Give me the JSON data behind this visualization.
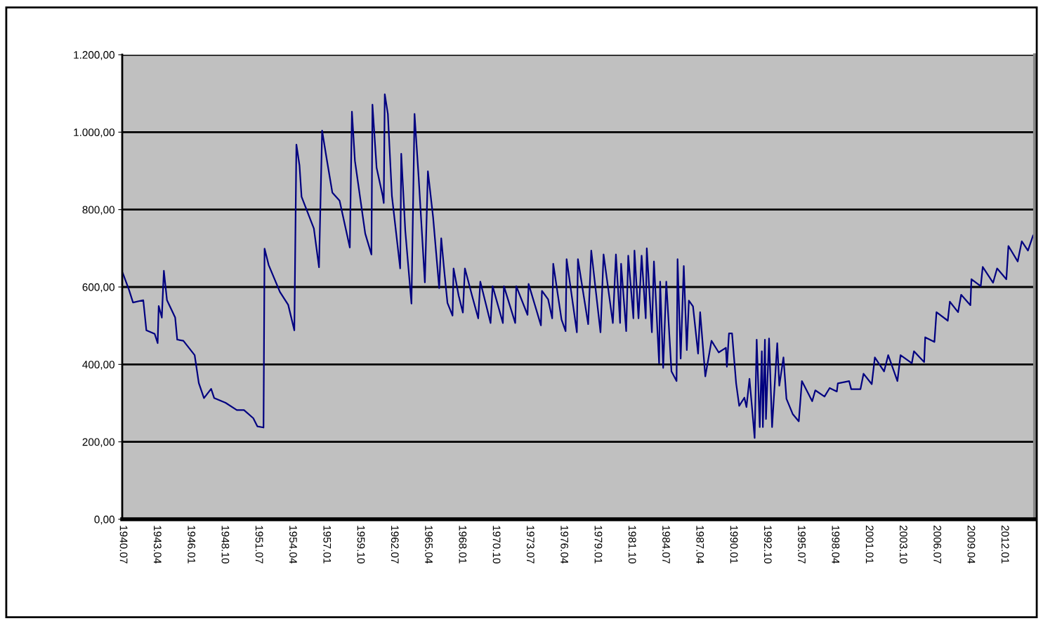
{
  "chart_data": {
    "type": "line",
    "grid": "y",
    "marker": "none",
    "line_style": "solid",
    "xlim": [
      "1940-06-15",
      "2014-06-15"
    ],
    "ylim": [
      0,
      1200
    ],
    "xticks": [
      {
        "value": "1940-07",
        "label": "1940.07"
      },
      {
        "value": "1943-04",
        "label": "1943.04"
      },
      {
        "value": "1946-01",
        "label": "1946.01"
      },
      {
        "value": "1948-10",
        "label": "1948.10"
      },
      {
        "value": "1951-07",
        "label": "1951.07"
      },
      {
        "value": "1954-04",
        "label": "1954.04"
      },
      {
        "value": "1957-01",
        "label": "1957.01"
      },
      {
        "value": "1959-10",
        "label": "1959.10"
      },
      {
        "value": "1962-07",
        "label": "1962.07"
      },
      {
        "value": "1965-04",
        "label": "1965.04"
      },
      {
        "value": "1968-01",
        "label": "1968.01"
      },
      {
        "value": "1970-10",
        "label": "1970.10"
      },
      {
        "value": "1973-07",
        "label": "1973.07"
      },
      {
        "value": "1976-04",
        "label": "1976.04"
      },
      {
        "value": "1979-01",
        "label": "1979.01"
      },
      {
        "value": "1981-10",
        "label": "1981.10"
      },
      {
        "value": "1984-07",
        "label": "1984.07"
      },
      {
        "value": "1987-04",
        "label": "1987.04"
      },
      {
        "value": "1990-01",
        "label": "1990.01"
      },
      {
        "value": "1992-10",
        "label": "1992.10"
      },
      {
        "value": "1995-07",
        "label": "1995.07"
      },
      {
        "value": "1998-04",
        "label": "1998.04"
      },
      {
        "value": "2001-01",
        "label": "2001.01"
      },
      {
        "value": "2003-10",
        "label": "2003.10"
      },
      {
        "value": "2006-07",
        "label": "2006.07"
      },
      {
        "value": "2009-04",
        "label": "2009.04"
      },
      {
        "value": "2012-01",
        "label": "2012.01"
      }
    ],
    "yticks": [
      {
        "value": 0,
        "label": "0,00"
      },
      {
        "value": 200,
        "label": "200,00"
      },
      {
        "value": 400,
        "label": "400,00"
      },
      {
        "value": 600,
        "label": "600,00"
      },
      {
        "value": 800,
        "label": "800,00"
      },
      {
        "value": 1000,
        "label": "1.000,00"
      },
      {
        "value": 1200,
        "label": "1.200,00"
      }
    ],
    "series": [
      {
        "color": "#000080",
        "x": [
          "1940-07",
          "1941-01",
          "1941-05",
          "1942-03",
          "1942-06",
          "1943-02",
          "1943-05",
          "1943-06",
          "1943-09",
          "1943-11",
          "1944-02",
          "1944-10",
          "1944-12",
          "1945-06",
          "1946-05",
          "1946-09",
          "1947-02",
          "1947-09",
          "1947-12",
          "1948-11",
          "1949-10",
          "1950-05",
          "1951-02",
          "1951-06",
          "1951-12",
          "1952-01",
          "1952-05",
          "1953-04",
          "1953-12",
          "1954-06",
          "1954-08",
          "1954-11",
          "1955-01",
          "1956-01",
          "1956-06",
          "1956-09",
          "1957-01",
          "1957-07",
          "1958-02",
          "1958-12",
          "1959-02",
          "1959-05",
          "1960-03",
          "1960-09",
          "1960-10",
          "1961-02",
          "1961-08",
          "1961-09",
          "1961-10",
          "1962-01",
          "1962-05",
          "1963-01",
          "1963-02",
          "1963-06",
          "1963-12",
          "1964-03",
          "1964-07",
          "1965-01",
          "1965-04",
          "1965-09",
          "1966-03",
          "1966-05",
          "1966-08",
          "1966-11",
          "1967-04",
          "1967-05",
          "1967-10",
          "1968-02",
          "1968-04",
          "1968-11",
          "1969-05",
          "1969-07",
          "1970-05",
          "1970-07",
          "1971-05",
          "1971-06",
          "1972-05",
          "1972-06",
          "1973-05",
          "1973-06",
          "1974-06",
          "1974-07",
          "1975-01",
          "1975-05",
          "1975-06",
          "1976-02",
          "1976-06",
          "1976-07",
          "1977-05",
          "1977-06",
          "1978-04",
          "1978-07",
          "1979-04",
          "1979-07",
          "1980-04",
          "1980-07",
          "1980-11",
          "1980-12",
          "1981-05",
          "1981-07",
          "1981-12",
          "1982-01",
          "1982-05",
          "1982-08",
          "1982-12",
          "1983-01",
          "1983-06",
          "1983-08",
          "1984-01",
          "1984-02",
          "1984-05",
          "1984-08",
          "1985-01",
          "1985-06",
          "1985-07",
          "1985-10",
          "1986-01",
          "1986-04",
          "1986-06",
          "1986-10",
          "1987-03",
          "1987-05",
          "1987-10",
          "1988-04",
          "1988-11",
          "1989-06",
          "1989-07",
          "1989-09",
          "1989-12",
          "1990-04",
          "1990-07",
          "1990-12",
          "1991-02",
          "1991-05",
          "1991-08",
          "1991-10",
          "1991-12",
          "1992-03",
          "1992-05",
          "1992-06",
          "1992-08",
          "1992-09",
          "1992-12",
          "1993-03",
          "1993-08",
          "1993-10",
          "1994-02",
          "1994-05",
          "1994-11",
          "1995-05",
          "1995-08",
          "1996-06",
          "1996-09",
          "1997-06",
          "1997-11",
          "1998-06",
          "1998-07",
          "1999-06",
          "1999-08",
          "2000-05",
          "2000-08",
          "2001-04",
          "2001-07",
          "2002-04",
          "2002-08",
          "2003-05",
          "2003-08",
          "2004-07",
          "2004-09",
          "2005-07",
          "2005-08",
          "2006-05",
          "2006-07",
          "2007-06",
          "2007-08",
          "2008-04",
          "2008-07",
          "2009-04",
          "2009-05",
          "2010-02",
          "2010-04",
          "2011-02",
          "2011-06",
          "2012-03",
          "2012-05",
          "2013-02",
          "2013-06",
          "2013-12",
          "2014-05"
        ],
        "values": [
          636,
          593,
          560,
          566,
          488,
          479,
          455,
          551,
          521,
          642,
          566,
          521,
          464,
          461,
          424,
          352,
          313,
          337,
          313,
          301,
          282,
          282,
          261,
          240,
          237,
          699,
          657,
          587,
          554,
          488,
          968,
          914,
          833,
          751,
          651,
          1004,
          938,
          844,
          823,
          702,
          1053,
          926,
          738,
          684,
          1071,
          908,
          835,
          817,
          1098,
          1047,
          835,
          648,
          944,
          745,
          557,
          1047,
          883,
          612,
          899,
          781,
          597,
          726,
          639,
          559,
          526,
          648,
          577,
          534,
          648,
          577,
          519,
          614,
          507,
          602,
          507,
          602,
          507,
          602,
          528,
          608,
          501,
          590,
          568,
          519,
          660,
          516,
          486,
          672,
          483,
          672,
          504,
          694,
          483,
          684,
          507,
          684,
          507,
          660,
          486,
          681,
          519,
          694,
          519,
          681,
          519,
          700,
          483,
          666,
          403,
          614,
          391,
          614,
          382,
          357,
          672,
          415,
          654,
          437,
          565,
          550,
          428,
          535,
          369,
          461,
          431,
          443,
          394,
          480,
          480,
          351,
          293,
          314,
          290,
          363,
          272,
          210,
          464,
          238,
          434,
          238,
          464,
          259,
          467,
          238,
          455,
          345,
          418,
          311,
          272,
          253,
          357,
          305,
          333,
          317,
          339,
          330,
          351,
          357,
          336,
          336,
          376,
          349,
          418,
          382,
          424,
          357,
          424,
          403,
          434,
          406,
          470,
          458,
          535,
          513,
          562,
          535,
          580,
          553,
          620,
          602,
          652,
          611,
          648,
          620,
          706,
          666,
          718,
          694,
          733
        ]
      }
    ]
  }
}
